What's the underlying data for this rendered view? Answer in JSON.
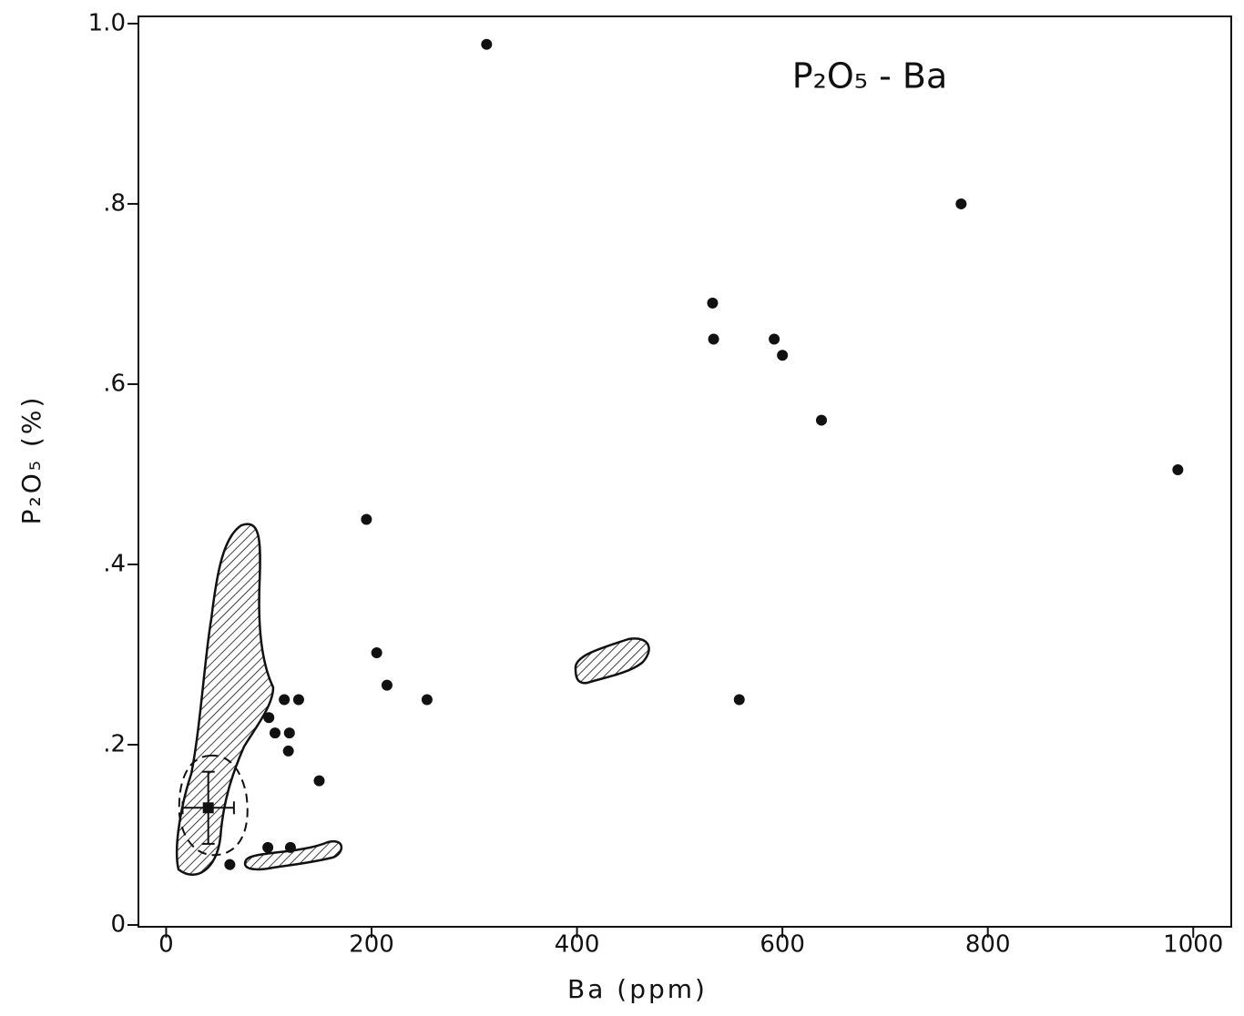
{
  "chart_data": {
    "type": "scatter",
    "title": "P₂O₅ - Ba",
    "x_label": "Ba (ppm)",
    "y_label": "P₂O₅ (%)",
    "color": "#111111",
    "xlim": [
      -27,
      1037
    ],
    "ylim": [
      -0.002,
      1.008
    ],
    "xticks": [
      0,
      200,
      400,
      600,
      800,
      1000
    ],
    "yticks": [
      0,
      {
        "value": 0.2,
        "label": ".2"
      },
      {
        "value": 0.4,
        "label": ".4"
      },
      {
        "value": 0.6,
        "label": ".6"
      },
      {
        "value": 0.8,
        "label": ".8"
      },
      {
        "value": 1.0,
        "label": "1.0"
      }
    ],
    "x": [
      312,
      774,
      532,
      533,
      592,
      600,
      638,
      985,
      195,
      205,
      215,
      254,
      558,
      115,
      129,
      100,
      106,
      120,
      119,
      149,
      99,
      121,
      62
    ],
    "values": [
      0.977,
      0.8,
      0.69,
      0.65,
      0.65,
      0.632,
      0.56,
      0.505,
      0.45,
      0.302,
      0.266,
      0.25,
      0.25,
      0.25,
      0.25,
      0.23,
      0.213,
      0.213,
      0.193,
      0.16,
      0.086,
      0.086,
      0.067
    ],
    "mean": {
      "x": 41,
      "y": 0.13,
      "xerr": 25,
      "yerr": 0.04
    }
  }
}
